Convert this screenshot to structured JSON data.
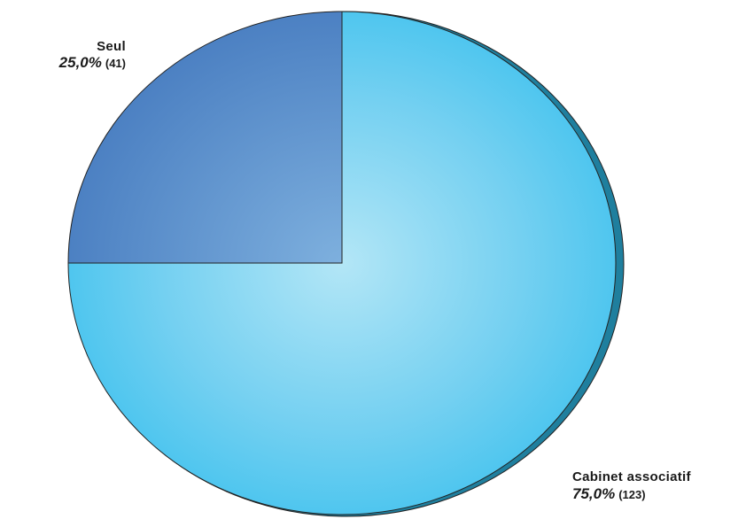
{
  "chart_data": {
    "type": "pie",
    "title": "",
    "slices": [
      {
        "label": "Seul",
        "value": 41,
        "percent_text": "25,0%",
        "count_text": "(41)",
        "color": "#4a85c4"
      },
      {
        "label": "Cabinet associatif",
        "value": 123,
        "percent_text": "75,0%",
        "count_text": "(123)",
        "color": "#4fc6ee"
      }
    ],
    "start_angle_deg": 0,
    "direction": "clockwise-from-left-quadrant",
    "shadow_color": "#1f7f9e"
  }
}
